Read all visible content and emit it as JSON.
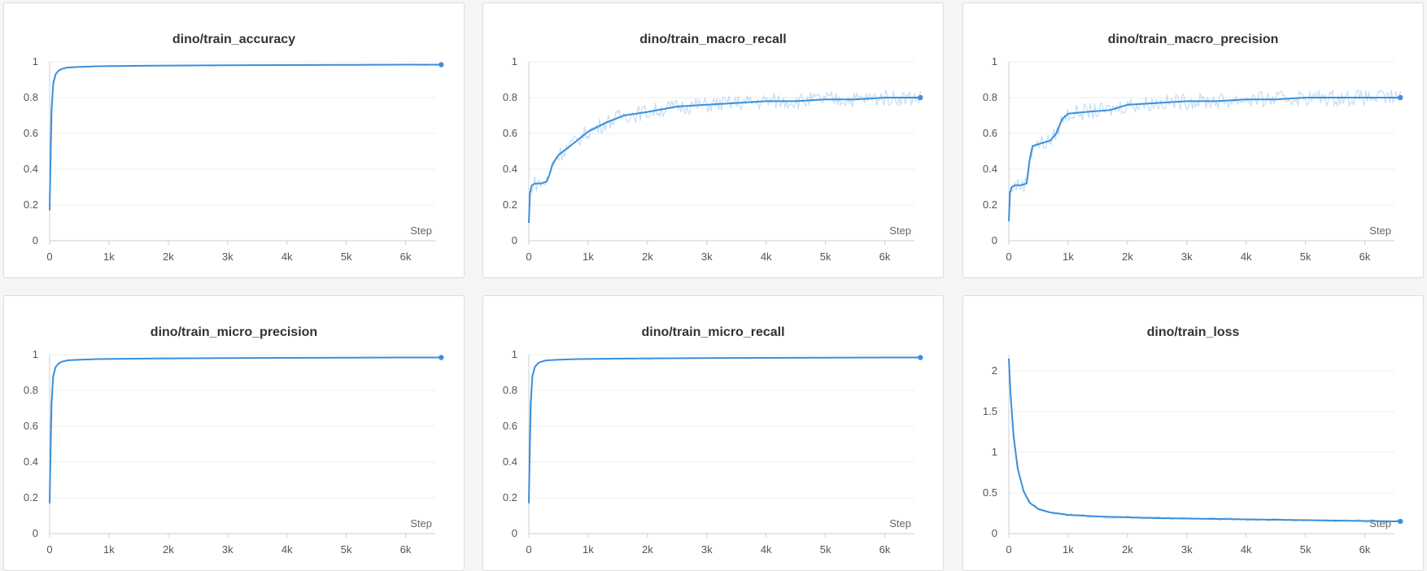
{
  "chart_data": [
    {
      "type": "line",
      "title": "dino/train_accuracy",
      "xlabel": "Step",
      "xlim": [
        0,
        6500
      ],
      "ylim": [
        0,
        1
      ],
      "xticks": [
        0,
        1000,
        2000,
        3000,
        4000,
        5000,
        6000
      ],
      "xtick_labels": [
        "0",
        "1k",
        "2k",
        "3k",
        "4k",
        "5k",
        "6k"
      ],
      "yticks": [
        0,
        0.2,
        0.4,
        0.6,
        0.8,
        1
      ],
      "ytick_labels": [
        "0",
        "0.2",
        "0.4",
        "0.6",
        "0.8",
        "1"
      ],
      "grid": true,
      "series": [
        {
          "color": "#3b8fdc",
          "x": [
            0,
            30,
            60,
            100,
            150,
            200,
            300,
            500,
            800,
            1200,
            2000,
            3000,
            4000,
            5000,
            6000,
            6600
          ],
          "y": [
            0.17,
            0.72,
            0.88,
            0.93,
            0.95,
            0.96,
            0.968,
            0.972,
            0.975,
            0.977,
            0.979,
            0.981,
            0.982,
            0.983,
            0.984,
            0.984
          ]
        }
      ]
    },
    {
      "type": "line",
      "title": "dino/train_macro_recall",
      "xlabel": "Step",
      "xlim": [
        0,
        6500
      ],
      "ylim": [
        0,
        1
      ],
      "xticks": [
        0,
        1000,
        2000,
        3000,
        4000,
        5000,
        6000
      ],
      "xtick_labels": [
        "0",
        "1k",
        "2k",
        "3k",
        "4k",
        "5k",
        "6k"
      ],
      "yticks": [
        0,
        0.2,
        0.4,
        0.6,
        0.8,
        1
      ],
      "ytick_labels": [
        "0",
        "0.2",
        "0.4",
        "0.6",
        "0.8",
        "1"
      ],
      "grid": true,
      "series": [
        {
          "color": "#3b8fdc",
          "x": [
            0,
            20,
            50,
            100,
            200,
            300,
            350,
            400,
            500,
            700,
            1000,
            1300,
            1600,
            2000,
            2500,
            3000,
            3500,
            4000,
            4500,
            5000,
            5500,
            6000,
            6600
          ],
          "y": [
            0.1,
            0.27,
            0.31,
            0.32,
            0.32,
            0.33,
            0.37,
            0.43,
            0.48,
            0.53,
            0.61,
            0.66,
            0.7,
            0.72,
            0.75,
            0.76,
            0.77,
            0.78,
            0.78,
            0.79,
            0.79,
            0.8,
            0.8
          ]
        }
      ]
    },
    {
      "type": "line",
      "title": "dino/train_macro_precision",
      "xlabel": "Step",
      "xlim": [
        0,
        6500
      ],
      "ylim": [
        0,
        1
      ],
      "xticks": [
        0,
        1000,
        2000,
        3000,
        4000,
        5000,
        6000
      ],
      "xtick_labels": [
        "0",
        "1k",
        "2k",
        "3k",
        "4k",
        "5k",
        "6k"
      ],
      "yticks": [
        0,
        0.2,
        0.4,
        0.6,
        0.8,
        1
      ],
      "ytick_labels": [
        "0",
        "0.2",
        "0.4",
        "0.6",
        "0.8",
        "1"
      ],
      "grid": true,
      "series": [
        {
          "color": "#3b8fdc",
          "x": [
            0,
            20,
            50,
            100,
            200,
            300,
            350,
            400,
            600,
            700,
            800,
            900,
            1000,
            1300,
            1700,
            2000,
            2500,
            3000,
            3500,
            4000,
            4500,
            5000,
            5500,
            6000,
            6600
          ],
          "y": [
            0.11,
            0.27,
            0.3,
            0.31,
            0.31,
            0.32,
            0.45,
            0.53,
            0.55,
            0.56,
            0.6,
            0.68,
            0.71,
            0.72,
            0.73,
            0.76,
            0.77,
            0.78,
            0.78,
            0.79,
            0.79,
            0.8,
            0.8,
            0.8,
            0.8
          ]
        }
      ]
    },
    {
      "type": "line",
      "title": "dino/train_micro_precision",
      "xlabel": "Step",
      "xlim": [
        0,
        6500
      ],
      "ylim": [
        0,
        1
      ],
      "xticks": [
        0,
        1000,
        2000,
        3000,
        4000,
        5000,
        6000
      ],
      "xtick_labels": [
        "0",
        "1k",
        "2k",
        "3k",
        "4k",
        "5k",
        "6k"
      ],
      "yticks": [
        0,
        0.2,
        0.4,
        0.6,
        0.8,
        1
      ],
      "ytick_labels": [
        "0",
        "0.2",
        "0.4",
        "0.6",
        "0.8",
        "1"
      ],
      "grid": true,
      "series": [
        {
          "color": "#3b8fdc",
          "x": [
            0,
            30,
            60,
            100,
            150,
            200,
            300,
            500,
            800,
            1200,
            2000,
            3000,
            4000,
            5000,
            6000,
            6600
          ],
          "y": [
            0.17,
            0.72,
            0.88,
            0.93,
            0.95,
            0.96,
            0.968,
            0.972,
            0.975,
            0.977,
            0.979,
            0.981,
            0.982,
            0.983,
            0.984,
            0.984
          ]
        }
      ]
    },
    {
      "type": "line",
      "title": "dino/train_micro_recall",
      "xlabel": "Step",
      "xlim": [
        0,
        6500
      ],
      "ylim": [
        0,
        1
      ],
      "xticks": [
        0,
        1000,
        2000,
        3000,
        4000,
        5000,
        6000
      ],
      "xtick_labels": [
        "0",
        "1k",
        "2k",
        "3k",
        "4k",
        "5k",
        "6k"
      ],
      "yticks": [
        0,
        0.2,
        0.4,
        0.6,
        0.8,
        1
      ],
      "ytick_labels": [
        "0",
        "0.2",
        "0.4",
        "0.6",
        "0.8",
        "1"
      ],
      "grid": true,
      "series": [
        {
          "color": "#3b8fdc",
          "x": [
            0,
            30,
            60,
            100,
            150,
            200,
            300,
            500,
            800,
            1200,
            2000,
            3000,
            4000,
            5000,
            6000,
            6600
          ],
          "y": [
            0.17,
            0.72,
            0.88,
            0.93,
            0.95,
            0.96,
            0.968,
            0.972,
            0.975,
            0.977,
            0.979,
            0.981,
            0.982,
            0.983,
            0.984,
            0.984
          ]
        }
      ]
    },
    {
      "type": "line",
      "title": "dino/train_loss",
      "xlabel": "Step",
      "xlim": [
        0,
        6500
      ],
      "ylim": [
        0,
        2.2
      ],
      "xticks": [
        0,
        1000,
        2000,
        3000,
        4000,
        5000,
        6000
      ],
      "xtick_labels": [
        "0",
        "1k",
        "2k",
        "3k",
        "4k",
        "5k",
        "6k"
      ],
      "yticks": [
        0,
        0.5,
        1,
        1.5,
        2
      ],
      "ytick_labels": [
        "0",
        "0.5",
        "1",
        "1.5",
        "2"
      ],
      "grid": true,
      "series": [
        {
          "color": "#3b8fdc",
          "x": [
            0,
            30,
            80,
            150,
            250,
            350,
            500,
            700,
            1000,
            1500,
            2000,
            2500,
            3000,
            3500,
            4000,
            4500,
            5000,
            5500,
            6000,
            6600
          ],
          "y": [
            2.15,
            1.7,
            1.2,
            0.8,
            0.52,
            0.38,
            0.3,
            0.26,
            0.23,
            0.21,
            0.2,
            0.19,
            0.185,
            0.18,
            0.175,
            0.17,
            0.165,
            0.16,
            0.155,
            0.15
          ]
        }
      ]
    }
  ]
}
